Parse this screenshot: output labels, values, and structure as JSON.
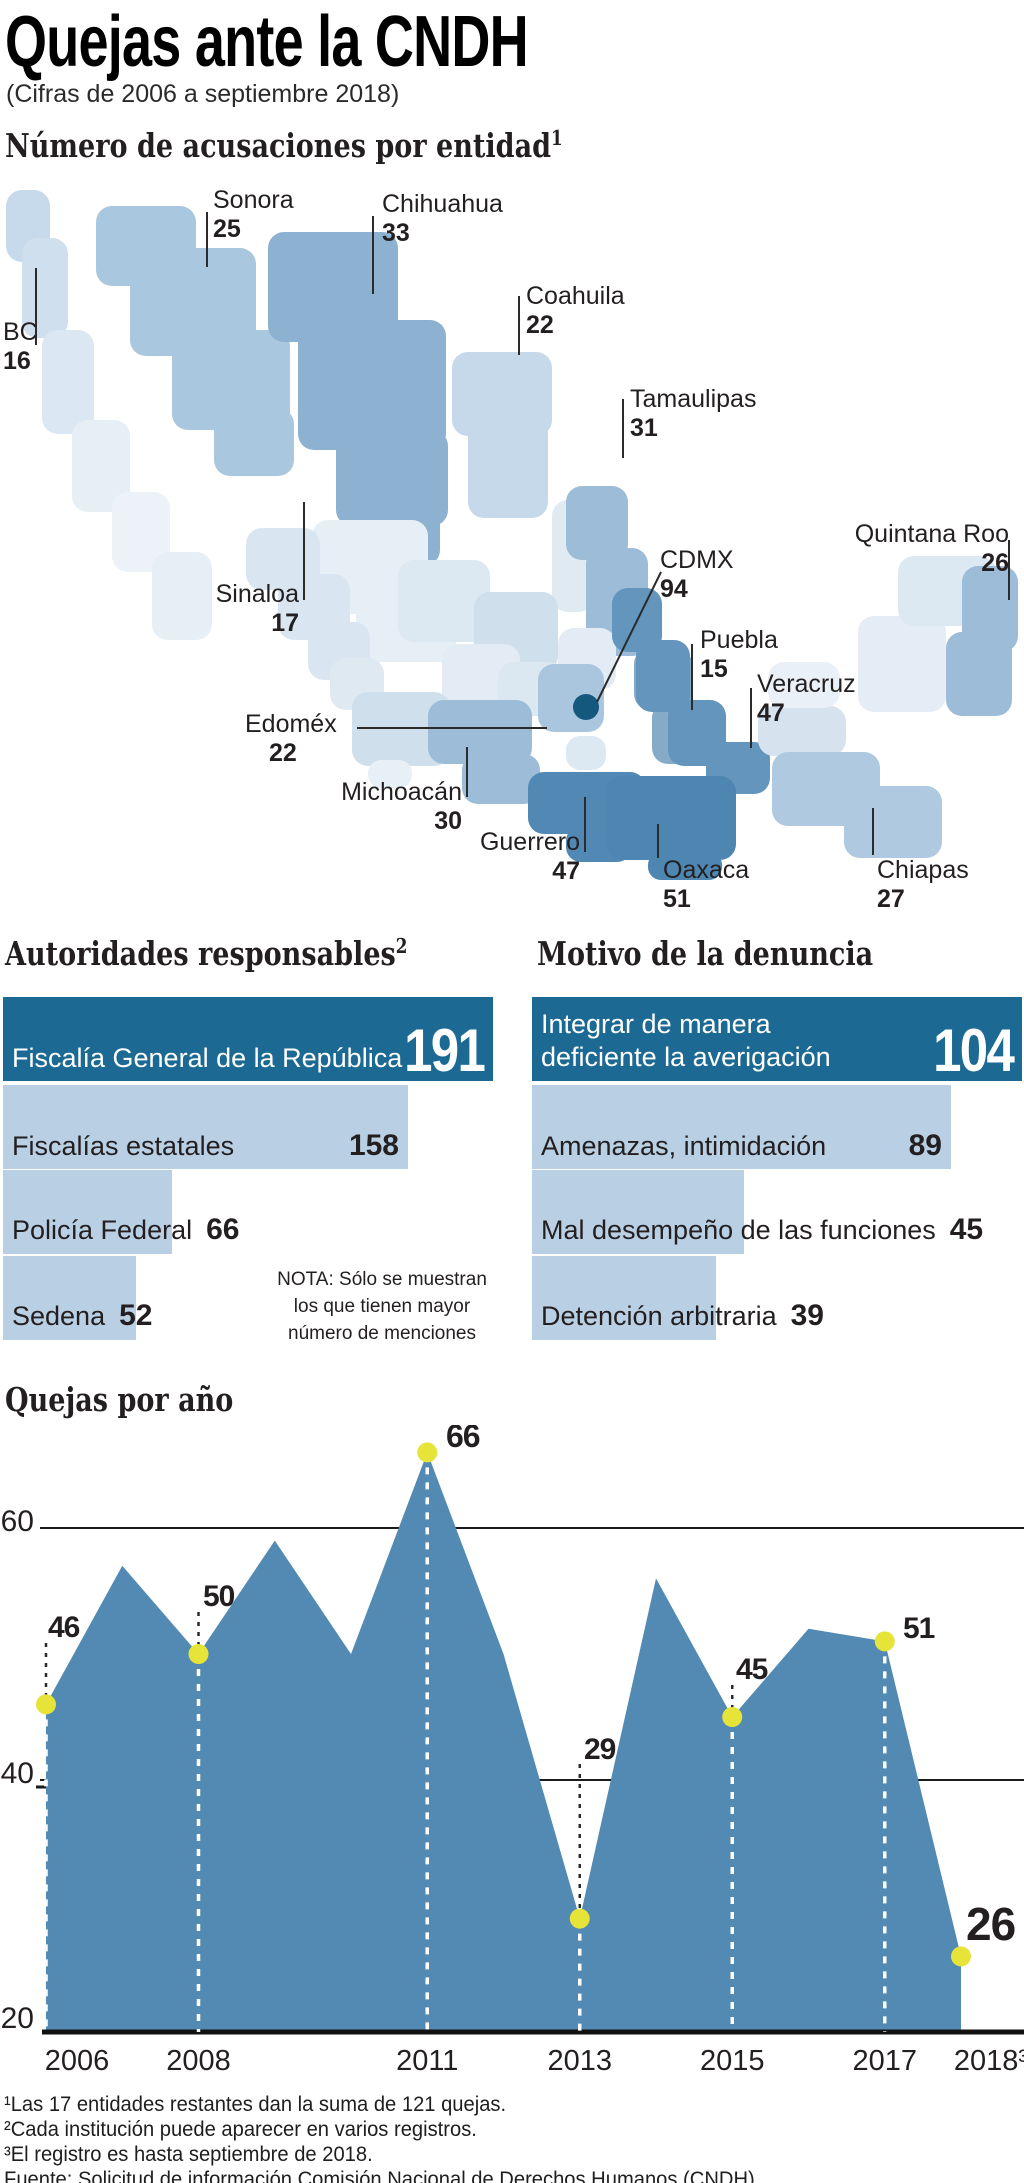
{
  "title": "Quejas ante la CNDH",
  "subtitle": "(Cifras de 2006 a septiembre 2018)",
  "map_section": {
    "heading": "Número de acusaciones por entidad",
    "heading_sup": "1",
    "states": [
      {
        "name": "BC",
        "value": 16
      },
      {
        "name": "Sonora",
        "value": 25
      },
      {
        "name": "Chihuahua",
        "value": 33
      },
      {
        "name": "Coahuila",
        "value": 22
      },
      {
        "name": "Tamaulipas",
        "value": 31
      },
      {
        "name": "Quintana Roo",
        "value": 26
      },
      {
        "name": "Sinaloa",
        "value": 17
      },
      {
        "name": "Edoméx",
        "value": 22
      },
      {
        "name": "Michoacán",
        "value": 30
      },
      {
        "name": "Guerrero",
        "value": 47
      },
      {
        "name": "CDMX",
        "value": 94
      },
      {
        "name": "Puebla",
        "value": 15
      },
      {
        "name": "Veracruz",
        "value": 47
      },
      {
        "name": "Oaxaca",
        "value": 51
      },
      {
        "name": "Chiapas",
        "value": 27
      }
    ]
  },
  "authorities": {
    "heading": "Autoridades responsables",
    "heading_sup": "2",
    "bars": [
      {
        "label": "Fiscalía General de la República",
        "value": 191
      },
      {
        "label": "Fiscalías estatales",
        "value": 158
      },
      {
        "label": "Policía Federal",
        "value": 66
      },
      {
        "label": "Sedena",
        "value": 52
      }
    ],
    "note_lines": [
      "NOTA: Sólo se muestran",
      "los que tienen mayor",
      "número de menciones"
    ]
  },
  "motives": {
    "heading": "Motivo de la denuncia",
    "bars": [
      {
        "label": "Integrar de manera deficiente la averigación",
        "label_lines": [
          "Integrar de manera",
          "deficiente la averigación"
        ],
        "value": 104
      },
      {
        "label": "Amenazas, intimidación",
        "value": 89
      },
      {
        "label": "Mal desempeño de las funciones",
        "value": 45
      },
      {
        "label": "Detención arbitraria",
        "value": 39
      }
    ]
  },
  "yearly": {
    "heading": "Quejas por año"
  },
  "footnotes": [
    "¹Las 17 entidades restantes dan la suma de 121 quejas.",
    "²Cada institución puede aparecer en varios registros.",
    "³El registro es hasta septiembre de 2018.",
    "Fuente: Solicitud de información Comisión Nacional de Derechos Humanos (CNDH)"
  ],
  "colors": {
    "accent_dark": "#1c6a93",
    "bar_light": "#b9cfe4",
    "area_fill": "#528ab3",
    "dot_yellow": "#e6e339",
    "cdmx_dot": "#14587e",
    "text": "#231f20"
  },
  "chart_data": [
    {
      "type": "table",
      "title": "Número de acusaciones por entidad¹",
      "note": "choropleth map of Mexico, accusations per state",
      "categories": [
        "BC",
        "Sonora",
        "Chihuahua",
        "Coahuila",
        "Tamaulipas",
        "Quintana Roo",
        "Sinaloa",
        "Edoméx",
        "Michoacán",
        "Guerrero",
        "CDMX",
        "Puebla",
        "Veracruz",
        "Oaxaca",
        "Chiapas"
      ],
      "values": [
        16,
        25,
        33,
        22,
        31,
        26,
        17,
        22,
        30,
        47,
        94,
        15,
        47,
        51,
        27
      ]
    },
    {
      "type": "bar",
      "title": "Autoridades responsables²",
      "orientation": "horizontal",
      "categories": [
        "Fiscalía General de la República",
        "Fiscalías estatales",
        "Policía Federal",
        "Sedena"
      ],
      "values": [
        191,
        158,
        66,
        52
      ],
      "xlim": [
        0,
        191
      ]
    },
    {
      "type": "bar",
      "title": "Motivo de la denuncia",
      "orientation": "horizontal",
      "categories": [
        "Integrar de manera deficiente la averigación",
        "Amenazas, intimidación",
        "Mal desempeño de las funciones",
        "Detención arbitraria"
      ],
      "values": [
        104,
        89,
        45,
        39
      ],
      "xlim": [
        0,
        104
      ]
    },
    {
      "type": "area",
      "title": "Quejas por año",
      "x": [
        2006,
        2007,
        2008,
        2009,
        2010,
        2011,
        2012,
        2013,
        2014,
        2015,
        2016,
        2017,
        2018
      ],
      "values": [
        46,
        57,
        50,
        59,
        50,
        66,
        50,
        29,
        56,
        45,
        52,
        51,
        26
      ],
      "marked": [
        2006,
        2008,
        2011,
        2013,
        2015,
        2017,
        2018
      ],
      "marked_values": {
        "2006": 46,
        "2008": 50,
        "2011": 66,
        "2013": 29,
        "2015": 45,
        "2017": 51,
        "2018": 26
      },
      "ylim": [
        20,
        70
      ],
      "yticks": [
        60,
        40,
        20
      ],
      "xticks": [
        {
          "year": 2006,
          "label": "2006"
        },
        {
          "year": 2008,
          "label": "2008"
        },
        {
          "year": 2011,
          "label": "2011"
        },
        {
          "year": 2013,
          "label": "2013"
        },
        {
          "year": 2015,
          "label": "2015"
        },
        {
          "year": 2017,
          "label": "2017"
        },
        {
          "year": 2018,
          "label": "2018³"
        }
      ],
      "grid": "horizontal",
      "legend": "none"
    }
  ]
}
